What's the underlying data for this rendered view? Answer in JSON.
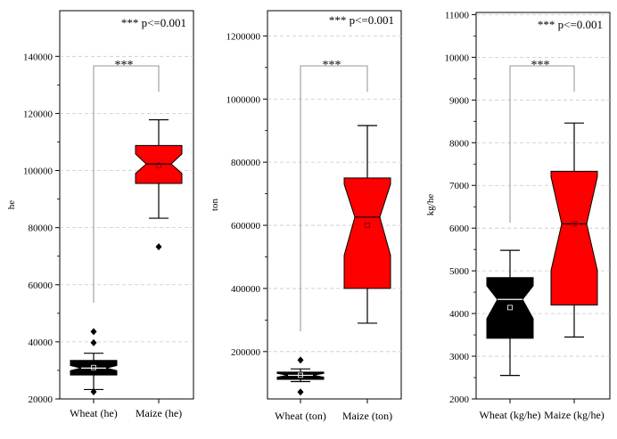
{
  "chart_data": [
    {
      "type": "box",
      "ylabel": "he",
      "ylim": [
        20000,
        156000
      ],
      "yticks": [
        20000,
        40000,
        60000,
        80000,
        100000,
        120000,
        140000
      ],
      "yticklabels": [
        "20000",
        "40000",
        "60000",
        "80000",
        "100000",
        "120000",
        "140000"
      ],
      "significance_note": "*** p<=0.001",
      "bracket_label": "***",
      "categories": [
        "Wheat (he)",
        "Maize (he)"
      ],
      "series": [
        {
          "color": "#000000",
          "whisker_low": 23300,
          "q1": 28400,
          "median": 30800,
          "q3": 33500,
          "whisker_high": 36000,
          "mean": 31000,
          "notch_low": 29900,
          "notch_high": 31700,
          "outliers": [
            22500,
            39700,
            43600
          ]
        },
        {
          "color": "#ff0000",
          "whisker_low": 83300,
          "q1": 95500,
          "median": 102300,
          "q3": 108800,
          "whisker_high": 117800,
          "mean": 101800,
          "notch_low": 99000,
          "notch_high": 105800,
          "outliers": [
            73300
          ]
        }
      ]
    },
    {
      "type": "box",
      "ylabel": "ton",
      "ylim": [
        50000,
        1280000
      ],
      "yticks": [
        200000,
        400000,
        600000,
        800000,
        1000000,
        1200000
      ],
      "yticklabels": [
        "200000",
        "400000",
        "600000",
        "800000",
        "1000000",
        "1200000"
      ],
      "significance_note": "*** p<=0.001",
      "bracket_label": "***",
      "categories": [
        "Wheat (ton)",
        "Maize (ton)"
      ],
      "series": [
        {
          "color": "#000000",
          "whisker_low": 105000,
          "q1": 112000,
          "median": 125000,
          "q3": 135000,
          "whisker_high": 145000,
          "mean": 125000,
          "notch_low": 119000,
          "notch_high": 131000,
          "outliers": [
            72000,
            173000
          ]
        },
        {
          "color": "#ff0000",
          "whisker_low": 290000,
          "q1": 400000,
          "median": 626000,
          "q3": 750000,
          "whisker_high": 916000,
          "mean": 600000,
          "notch_low": 505000,
          "notch_high": 730000,
          "outliers": []
        }
      ]
    },
    {
      "type": "box",
      "ylabel": "kg/he",
      "ylim": [
        2000,
        11050
      ],
      "yticks": [
        2000,
        3000,
        4000,
        5000,
        6000,
        7000,
        8000,
        9000,
        10000,
        11000
      ],
      "yticklabels": [
        "2000",
        "3000",
        "4000",
        "5000",
        "6000",
        "7000",
        "8000",
        "9000",
        "10000",
        "11000"
      ],
      "significance_note": "*** p<=0.001",
      "bracket_label": "***",
      "categories": [
        "Wheat (kg/he)",
        "Maize (kg/he)"
      ],
      "series": [
        {
          "color": "#000000",
          "whisker_low": 2550,
          "q1": 3420,
          "median": 4330,
          "q3": 4840,
          "whisker_high": 5480,
          "mean": 4140,
          "notch_low": 3880,
          "notch_high": 4650,
          "outliers": []
        },
        {
          "color": "#ff0000",
          "whisker_low": 3450,
          "q1": 4200,
          "median": 6100,
          "q3": 7330,
          "whisker_high": 8460,
          "mean": 6100,
          "notch_low": 5010,
          "notch_high": 7200,
          "outliers": []
        }
      ]
    }
  ]
}
